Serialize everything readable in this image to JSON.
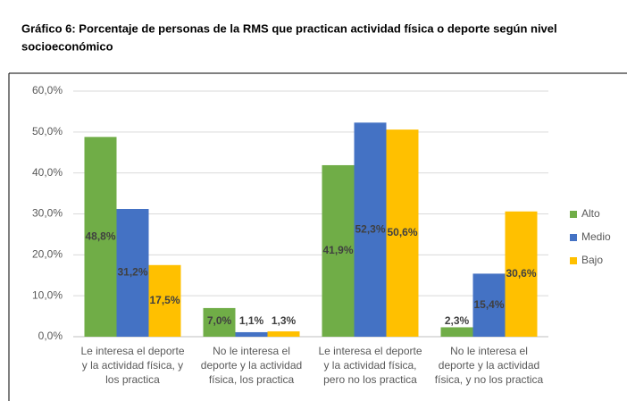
{
  "chart_data": {
    "type": "bar",
    "title": [
      "Gráfico 6: Porcentaje de personas de la RMS que practican actividad física o deporte según nivel",
      "socioeconómico"
    ],
    "categories": [
      [
        "Le interesa el deporte",
        "y la actividad física, y",
        "los practica"
      ],
      [
        "No le interesa el",
        "deporte y la actividad",
        "física, los practica"
      ],
      [
        "Le interesa el deporte",
        "y la actividad física,",
        "pero no los practica"
      ],
      [
        "No le interesa el",
        "deporte y la actividad",
        "física, y no los practica"
      ]
    ],
    "series": [
      {
        "name": "Alto",
        "color": "#70ad47",
        "values": [
          48.8,
          7.0,
          41.9,
          2.3
        ],
        "value_labels": [
          "48,8%",
          "7,0%",
          "41,9%",
          "2,3%"
        ]
      },
      {
        "name": "Medio",
        "color": "#4472c4",
        "values": [
          31.2,
          1.1,
          52.3,
          15.4
        ],
        "value_labels": [
          "31,2%",
          "1,1%",
          "52,3%",
          "15,4%"
        ]
      },
      {
        "name": "Bajo",
        "color": "#ffc000",
        "values": [
          17.5,
          1.3,
          50.6,
          30.6
        ],
        "value_labels": [
          "17,5%",
          "1,3%",
          "50,6%",
          "30,6%"
        ]
      }
    ],
    "ylim": [
      0,
      60
    ],
    "yticks": [
      {
        "value": 0,
        "label": "0,0%"
      },
      {
        "value": 10,
        "label": "10,0%"
      },
      {
        "value": 20,
        "label": "20,0%"
      },
      {
        "value": 30,
        "label": "30,0%"
      },
      {
        "value": 40,
        "label": "40,0%"
      },
      {
        "value": 50,
        "label": "50,0%"
      },
      {
        "value": 60,
        "label": "60,0%"
      }
    ],
    "grid": true,
    "legend": "right"
  }
}
